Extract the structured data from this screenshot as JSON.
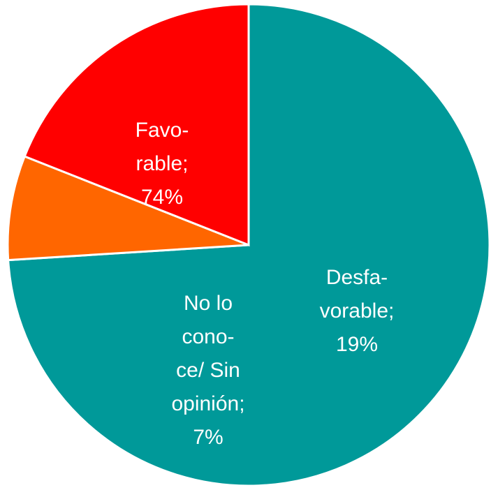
{
  "chart_data": {
    "type": "pie",
    "start_angle_deg": 90,
    "direction": "counterclockwise",
    "slices": [
      {
        "key": "favorable",
        "label_lines": [
          "Favo-",
          "rable;",
          "74%"
        ],
        "value": 74,
        "color": "#009999",
        "label_color": "#ffffff"
      },
      {
        "key": "no-lo-conoce",
        "label_lines": [
          "No lo",
          "cono-",
          "ce/ Sin",
          "opinión;",
          "7%"
        ],
        "value": 7,
        "color": "#ff6600",
        "label_color": "#ffffff"
      },
      {
        "key": "desfavorable",
        "label_lines": [
          "Desfa-",
          "vorable;",
          "19%"
        ],
        "value": 19,
        "color": "#ff0000",
        "label_color": "#ffffff"
      }
    ]
  }
}
